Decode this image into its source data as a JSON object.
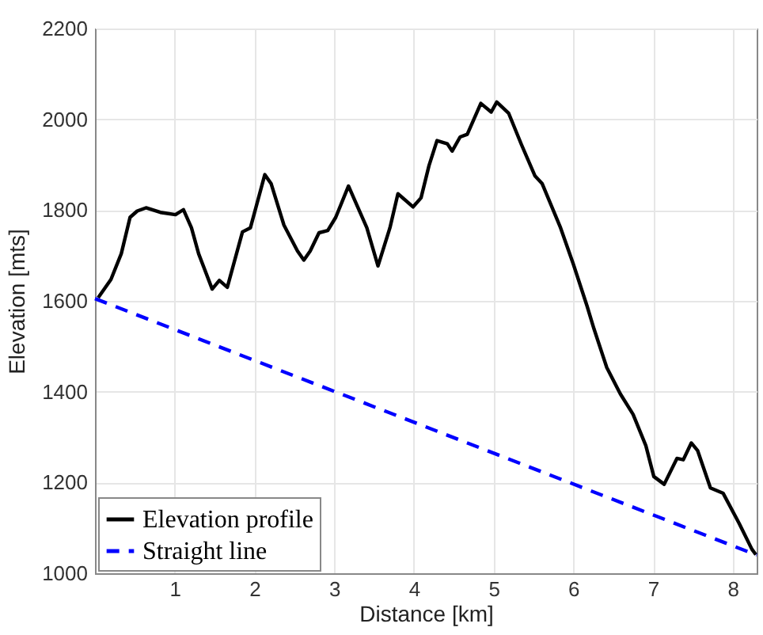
{
  "chart_data": {
    "type": "line",
    "xlabel": "Distance [km]",
    "ylabel": "Elevation [mts]",
    "xlim": [
      0,
      8.3
    ],
    "xticks": [
      1,
      2,
      3,
      4,
      5,
      6,
      7,
      8
    ],
    "ylim": [
      1000,
      2200
    ],
    "yticks": [
      1000,
      1200,
      1400,
      1600,
      1800,
      2000,
      2200
    ],
    "grid": true,
    "legend": "bottom left",
    "series": [
      {
        "name": "Elevation profile",
        "color": "#000000",
        "line_style": "solid",
        "x": [
          0.04,
          0.2,
          0.33,
          0.44,
          0.53,
          0.64,
          0.82,
          1.01,
          1.11,
          1.21,
          1.3,
          1.47,
          1.56,
          1.66,
          1.85,
          1.95,
          2.13,
          2.21,
          2.37,
          2.54,
          2.62,
          2.7,
          2.81,
          2.92,
          3.02,
          3.18,
          3.41,
          3.55,
          3.7,
          3.8,
          3.99,
          4.09,
          4.19,
          4.29,
          4.42,
          4.48,
          4.58,
          4.67,
          4.84,
          4.97,
          5.04,
          5.19,
          5.35,
          5.52,
          5.61,
          5.84,
          6.0,
          6.17,
          6.26,
          6.42,
          6.59,
          6.75,
          6.91,
          7.01,
          7.14,
          7.3,
          7.38,
          7.48,
          7.56,
          7.72,
          7.88,
          8.08,
          8.24,
          8.29
        ],
        "values": [
          1607,
          1647,
          1704,
          1784,
          1798,
          1805,
          1795,
          1790,
          1801,
          1761,
          1704,
          1626,
          1645,
          1630,
          1752,
          1761,
          1878,
          1858,
          1767,
          1710,
          1690,
          1710,
          1750,
          1755,
          1784,
          1853,
          1761,
          1677,
          1761,
          1836,
          1807,
          1827,
          1898,
          1953,
          1946,
          1930,
          1961,
          1967,
          2035,
          2016,
          2038,
          2013,
          1944,
          1875,
          1858,
          1761,
          1681,
          1590,
          1538,
          1453,
          1395,
          1350,
          1281,
          1213,
          1196,
          1253,
          1250,
          1287,
          1270,
          1188,
          1176,
          1110,
          1053,
          1041
        ]
      },
      {
        "name": "Straight line",
        "color": "#0000ff",
        "line_style": "dashed",
        "x": [
          0,
          8.3
        ],
        "values": [
          1605,
          1040
        ]
      }
    ]
  }
}
